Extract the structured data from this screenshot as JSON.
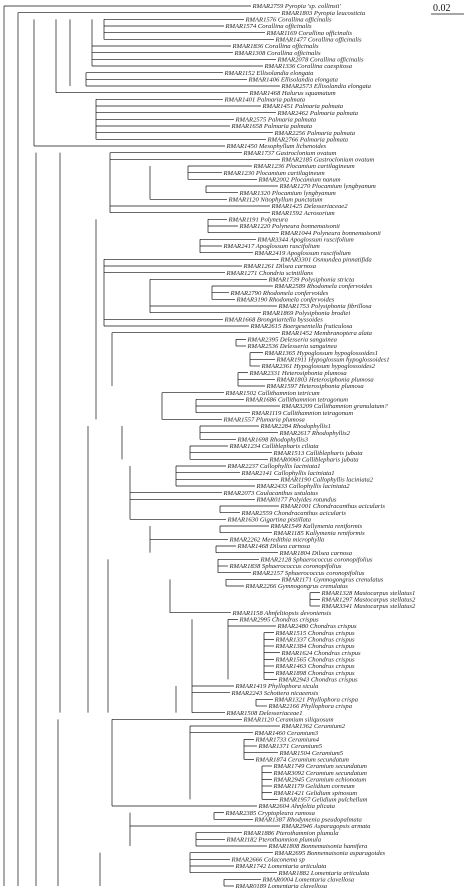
{
  "scale_bar": {
    "label": "0.02"
  },
  "taxa": [
    "RMAR2759 Pyropia 'sp. collinsii'",
    "RMAR1803 Pyropia leucosticta",
    "RMAR1576 Corallina officinalis",
    "RMAR1574 Corallina officinalis",
    "RMAR1169 Corallina officinalis",
    "RMAR1477 Corallina officinalis",
    "RMAR1836 Corallina officinalis",
    "RMAR1308 Corallina officinalis",
    "RMAR2078 Corallina officinalis",
    "RMAR1336 Corallina caespitosa",
    "RMAR1152 Ellisolandia elongata",
    "RMAR1406 Ellisolandia elongata",
    "RMAR2573 Ellisolandia elongata",
    "RMAR1468 Halurus squamatum",
    "RMAR1401 Palmaria palmata",
    "RMAR1451 Palmaria palmata",
    "RMAR2462 Palmaria palmata",
    "RMAR2575 Palmaria palmata",
    "RMAR1658 Palmaria palmata",
    "RMAR2256 Palmaria palmata",
    "RMAR2766 Palmaria palmata",
    "RMAR1450 Mesophyllum lichenoides",
    "RMAR1737 Gastroclonium ovatum",
    "RMAR2185 Gastroclonium ovatum",
    "RMAR1236 Plocamium cartilagineum",
    "RMAR1230 Plocamium cartilagineum",
    "RMAR2002 Plocamium nanum",
    "RMAR1270 Plocamium lyngbyanum",
    "RMAR1320 Plocamium lyngbyanum",
    "RMAR1120 Nitophyllum punctatum",
    "RMAR1425 Delesseriaceae2",
    "RMAR1592 Acrosorium",
    "RMAR1191 Polyneura",
    "RMAR1220 Polyneura bonnemaisonii",
    "RMAR1044 Polyneura bonnemaisonii",
    "RMAR3344 Apoglossum ruscifolium",
    "RMAR2417 Apoglossum ruscifolium",
    "RMAR2419 Apoglossum ruscifolium",
    "RMAR3301 Osmundea pinnatifida",
    "RMAR1261 Dilsea carnosa",
    "RMAR1271 Chondria scintillans",
    "RMAR1739 Polysiphonia stricta",
    "RMAR2589 Rhodomela confervoides",
    "RMAR2790 Rhodomela confervoides",
    "RMAR3190 Rhodomela confervoides",
    "RMAR1753 Polysiphonia fibrillosa",
    "RMAR1869 Polysiphonia brodiei",
    "RMAR1668 Brongniartella byssoides",
    "RMAR2615 Boergeseniella fruticulosa",
    "RMAR1452 Membranoptera alata",
    "RMAR2395 Delesseria sanguinea",
    "RMAR2536 Delesseria sanguinea",
    "RMAR1365 Hypoglossum hypoglossoides1",
    "RMAR1911 Hypoglossum hypoglossoides1",
    "RMAR2361 Hypoglossum hypoglossoides2",
    "RMAR2331 Heterosiphonia plumosa",
    "RMAR1803 Heterosiphonia plumosa",
    "RMAR1597 Heterosiphonia plumosa",
    "RMAR1502 Callithamnion tetricum",
    "RMAR1686 Callithamnion tetragonum",
    "RMAR3209 Callithamnion granulatum?",
    "RMAR1119 Callithamnion tetragonum",
    "RMAR1557 Plumaria plumosa",
    "RMAR2284 Rhodophyllis1",
    "RMAR2617 Rhodophyllis2",
    "RMAR1698 Rhodophyllis3",
    "RMAR1234 Calliblepharis ciliata",
    "RMAR1513 Calliblepharis jubata",
    "RMAR0060 Calliblepharis jubata",
    "RMAR2237 Callophyllis laciniata1",
    "RMAR2141 Callophyllis laciniata1",
    "RMAR1190 Callophyllis laciniata2",
    "RMAR2433 Callophyllis laciniata2",
    "RMAR2073 Caulacanthus ustulatus",
    "RMAR0177 Polyides rotundus",
    "RMAR1001 Chondracanthus acicularis",
    "RMAR2559 Chondracanthus acicularis",
    "RMAR1630 Gigartina pistillata",
    "RMAR1549 Kallymenia reniformis",
    "RMAR1185 Kallymenia reniformis",
    "RMAR2262 Meredithia microphylla",
    "RMAR1468 Dilsea carnosa",
    "RMAR1804 Dilsea carnosa",
    "RMAR2128 Sphaerococcus coronopifolius",
    "RMAR1838 Sphaerococcus coronopifolius",
    "RMAR2157 Sphaerococcus coronopifolius",
    "RMAR1171 Gymnogongrus crenulatus",
    "RMAR2266 Gymnogongrus crenulatus",
    "RMAR1328 Mastocarpus stellatus1",
    "RMAR1297 Mastocarpus stellatus2",
    "RMAR3341 Mastocarpus stellatus2",
    "RMAR1158 Ahnfeltiopsis devoniensis",
    "RMAR2995 Chondrus crispus",
    "RMAR2480 Chondrus crispus",
    "RMAR1515 Chondrus crispus",
    "RMAR1337 Chondrus crispus",
    "RMAR1384 Chondrus crispus",
    "RMAR1624 Chondrus crispus",
    "RMAR1565 Chondrus crispus",
    "RMAR1463 Chondrus crispus",
    "RMAR1898 Chondrus crispus",
    "RMAR2943 Chondrus crispus",
    "RMAR1419 Phyllophora sicula",
    "RMAR2243 Schottera nicaeensis",
    "RMAR1321 Phyllophora crispa",
    "RMAR2166 Phyllophora crispa",
    "RMAR1508 Delesseriaceae1",
    "RMAR1120 Ceramium siliquosum",
    "RMAR1362 Ceramium2",
    "RMAR1460 Ceramium3",
    "RMAR1733 Ceramium4",
    "RMAR1371 Ceramium5",
    "RMAR1504 Ceramium5",
    "RMAR1874 Ceramium secundatum",
    "RMAR1749 Ceramium secundatum",
    "RMAR3092 Ceramium secundatum",
    "RMAR2945 Ceramium echionotum",
    "RMAR1179 Gelidium corneum",
    "RMAR1421 Gelidium spinosum",
    "RMAR1957 Gelidium pulchellum",
    "RMAR2604 Ahnfeltia plicata",
    "RMAR2385 Cryptopleura ramosa",
    "RMAR1387 Rhodymenia pseudopalmata",
    "RMAR2946 Asparagopsis armata",
    "RMAR1886 Pterothamnion plumula",
    "RMAR1182 Pterothamnion plumula",
    "RMAR1808 Bonnemaisonia hamifera",
    "RMAR2695 Bonnemaisonia asparagoides",
    "RMAR2666 Colaconema sp",
    "RMAR1742 Lomentaria articulata",
    "RMAR1882 Lomentaria articulata",
    "RMAR0004 Lomentaria clavellosa",
    "RMAR0189 Lomentaria clavellosa"
  ]
}
